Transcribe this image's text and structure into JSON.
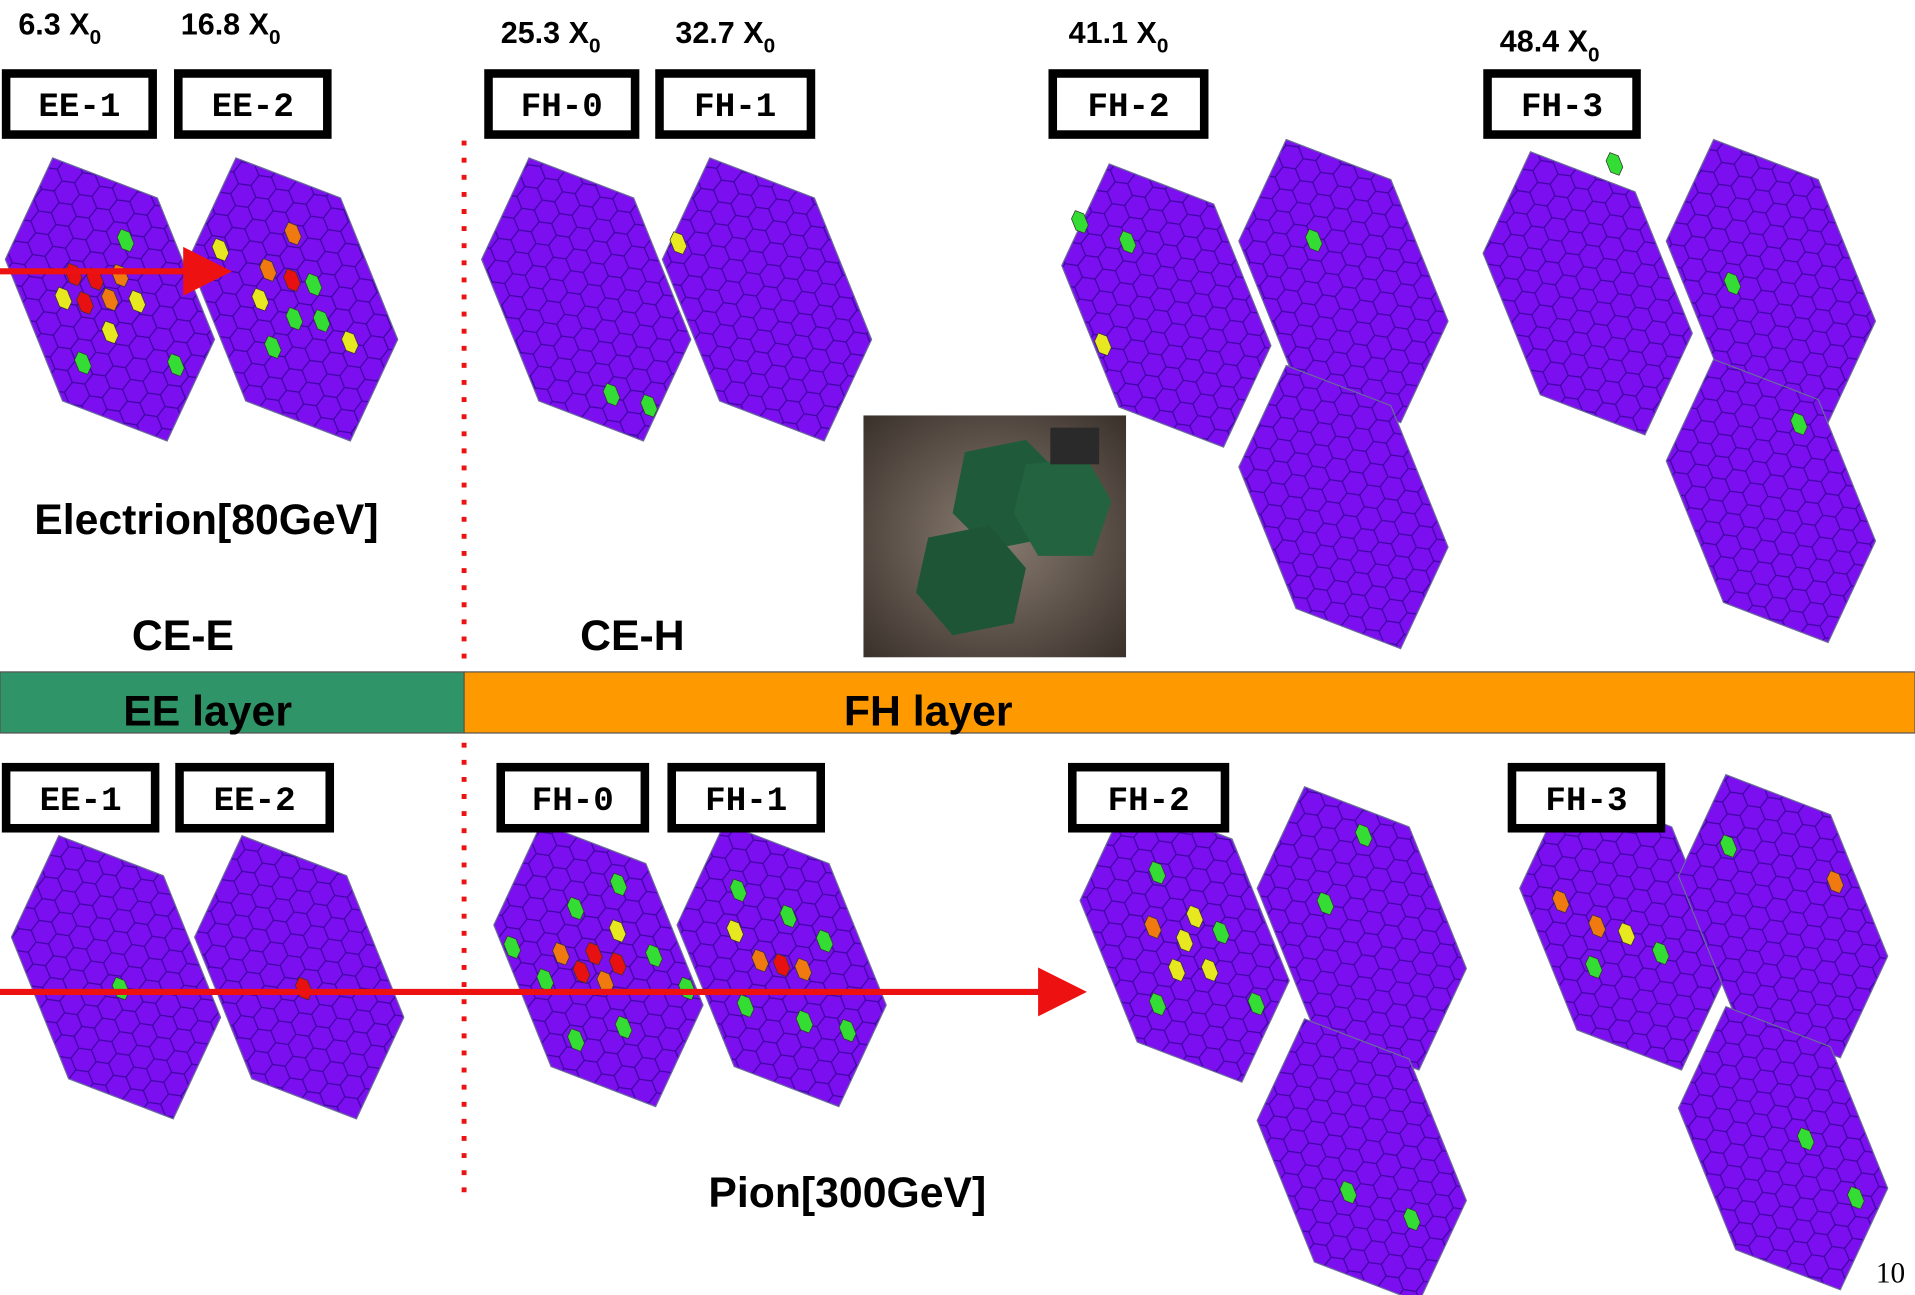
{
  "depths": [
    {
      "text": "6.3 X",
      "sub": "0"
    },
    {
      "text": "16.8 X",
      "sub": "0"
    },
    {
      "text": "25.3 X",
      "sub": "0"
    },
    {
      "text": "32.7 X",
      "sub": "0"
    },
    {
      "text": "41.1 X",
      "sub": "0"
    },
    {
      "text": "48.4 X",
      "sub": "0"
    }
  ],
  "top_layers": [
    "EE-1",
    "EE-2",
    "FH-0",
    "FH-1",
    "FH-2",
    "FH-3"
  ],
  "bottom_layers": [
    "EE-1",
    "EE-2",
    "FH-0",
    "FH-1",
    "FH-2",
    "FH-3"
  ],
  "electron_label": "Electrion[80GeV]",
  "ce_e": "CE-E",
  "ce_h": "CE-H",
  "ee_band": "EE layer",
  "fh_band": "FH layer",
  "pion_label": "Pion[300GeV]",
  "page_number": "10"
}
